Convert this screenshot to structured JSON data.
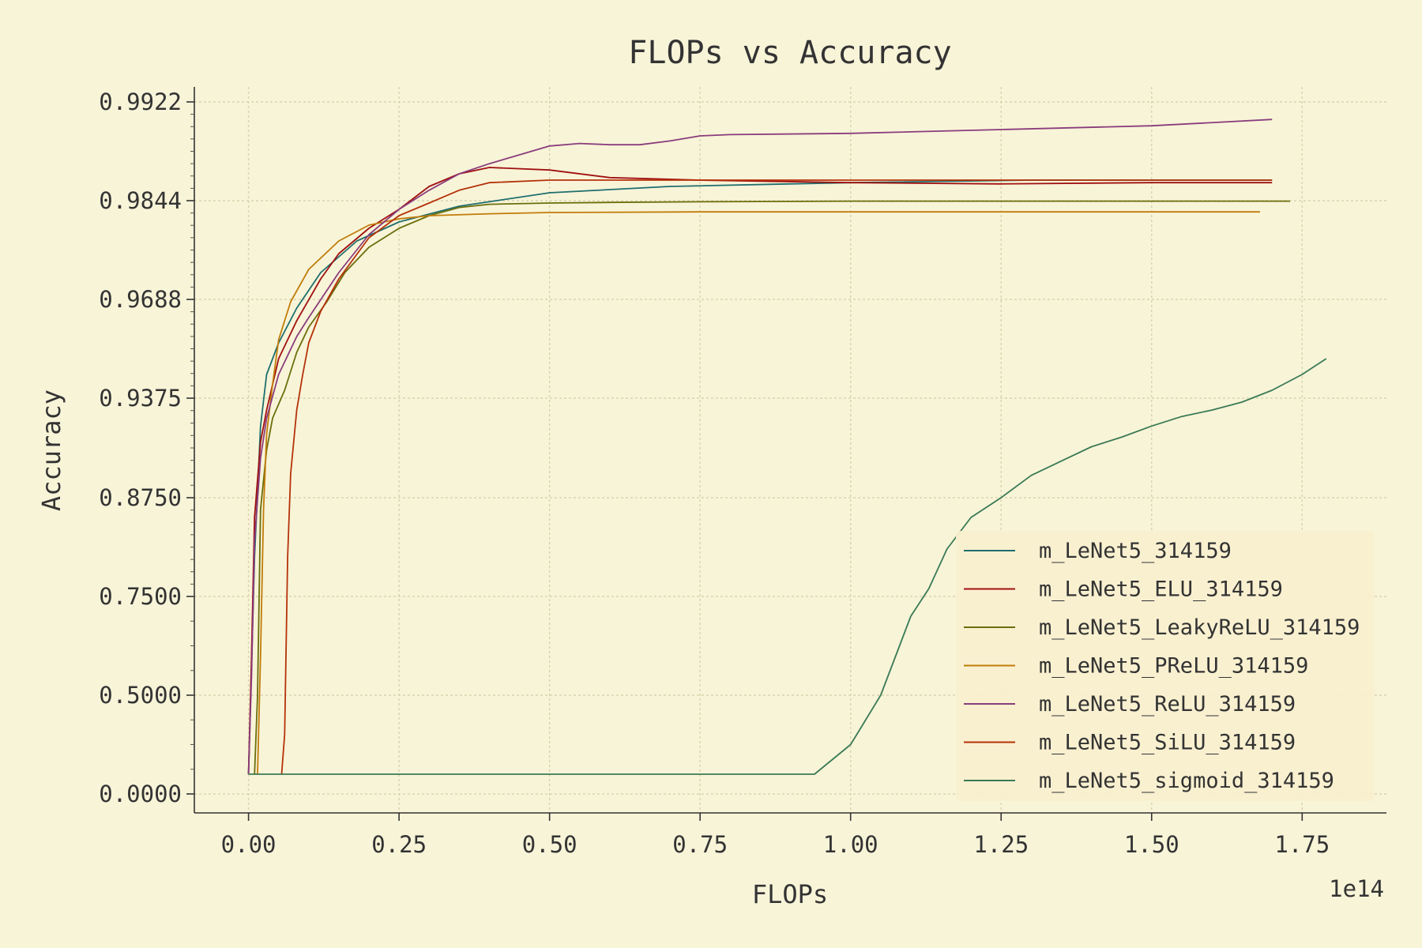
{
  "chart_data": {
    "type": "line",
    "title": "FLOPs vs Accuracy",
    "xlabel": "FLOPs",
    "ylabel": "Accuracy",
    "x_multiplier_label": "1e14",
    "x_unit": 100000000000000.0,
    "xlim": [
      -0.09,
      1.89
    ],
    "x_ticks": [
      0.0,
      0.25,
      0.5,
      0.75,
      1.0,
      1.25,
      1.5,
      1.75
    ],
    "x_tick_labels": [
      "0.00",
      "0.25",
      "0.50",
      "0.75",
      "1.00",
      "1.25",
      "1.50",
      "1.75"
    ],
    "y_ticks": [
      0.0,
      0.5,
      0.75,
      0.875,
      0.9375,
      0.96875,
      0.984375,
      0.9921875
    ],
    "y_tick_labels": [
      "0.0000",
      "0.5000",
      "0.7500",
      "0.8750",
      "0.9375",
      "0.9688",
      "0.9844",
      "0.9922"
    ],
    "y_scale": "logit-like (1 - accuracy halves per tick)",
    "grid": true,
    "legend_position": "lower right",
    "series": [
      {
        "name": "m_LeNet5_314159",
        "color": "#1f6e6e",
        "x": [
          0.0,
          0.01,
          0.02,
          0.03,
          0.05,
          0.08,
          0.12,
          0.18,
          0.25,
          0.35,
          0.5,
          0.7,
          1.0,
          1.3,
          1.5,
          1.7
        ],
        "y": [
          0.1,
          0.8,
          0.92,
          0.945,
          0.955,
          0.966,
          0.973,
          0.978,
          0.981,
          0.9835,
          0.985,
          0.9855,
          0.9858,
          0.986,
          0.986,
          0.986
        ],
        "hidden_under_other_series": true
      },
      {
        "name": "m_LeNet5_ELU_314159",
        "color": "#a01010",
        "x": [
          0.0,
          0.005,
          0.01,
          0.02,
          0.03,
          0.05,
          0.08,
          0.12,
          0.15,
          0.2,
          0.25,
          0.3,
          0.35,
          0.4,
          0.5,
          0.6,
          0.75,
          1.0,
          1.25,
          1.5,
          1.7
        ],
        "y": [
          0.1,
          0.6,
          0.85,
          0.91,
          0.93,
          0.95,
          0.962,
          0.972,
          0.976,
          0.98,
          0.983,
          0.9855,
          0.9865,
          0.987,
          0.9868,
          0.9862,
          0.986,
          0.9858,
          0.9857,
          0.9858,
          0.9858
        ]
      },
      {
        "name": "m_LeNet5_LeakyReLU_314159",
        "color": "#6b6e0c",
        "x": [
          0.01,
          0.015,
          0.02,
          0.03,
          0.04,
          0.06,
          0.08,
          0.1,
          0.13,
          0.16,
          0.2,
          0.25,
          0.3,
          0.35,
          0.4,
          0.5,
          0.6,
          0.75,
          1.0,
          1.25,
          1.5,
          1.73
        ],
        "y": [
          0.1,
          0.5,
          0.86,
          0.905,
          0.925,
          0.94,
          0.952,
          0.96,
          0.968,
          0.973,
          0.977,
          0.98,
          0.982,
          0.9833,
          0.9838,
          0.984,
          0.9841,
          0.9842,
          0.9843,
          0.9843,
          0.9843,
          0.9843
        ]
      },
      {
        "name": "m_LeNet5_PReLU_314159",
        "color": "#c17c0a",
        "x": [
          0.015,
          0.02,
          0.025,
          0.03,
          0.04,
          0.05,
          0.07,
          0.1,
          0.15,
          0.2,
          0.25,
          0.3,
          0.4,
          0.5,
          0.75,
          1.0,
          1.25,
          1.5,
          1.68
        ],
        "y": [
          0.1,
          0.6,
          0.86,
          0.915,
          0.942,
          0.956,
          0.968,
          0.9735,
          0.978,
          0.9805,
          0.9815,
          0.982,
          0.9823,
          0.9825,
          0.9826,
          0.9826,
          0.9826,
          0.9826,
          0.9826
        ]
      },
      {
        "name": "m_LeNet5_ReLU_314159",
        "color": "#8a3d7c",
        "x": [
          0.0,
          0.005,
          0.01,
          0.02,
          0.03,
          0.05,
          0.08,
          0.1,
          0.15,
          0.2,
          0.25,
          0.3,
          0.35,
          0.4,
          0.45,
          0.5,
          0.55,
          0.6,
          0.65,
          0.7,
          0.75,
          0.8,
          1.0,
          1.25,
          1.5,
          1.7
        ],
        "y": [
          0.1,
          0.55,
          0.82,
          0.9,
          0.925,
          0.945,
          0.957,
          0.963,
          0.973,
          0.979,
          0.983,
          0.9852,
          0.9865,
          0.9873,
          0.988,
          0.9887,
          0.9889,
          0.9888,
          0.9888,
          0.9891,
          0.9895,
          0.9896,
          0.9897,
          0.99,
          0.9903,
          0.9908
        ]
      },
      {
        "name": "m_LeNet5_SiLU_314159",
        "color": "#b5320a",
        "x": [
          0.055,
          0.06,
          0.065,
          0.07,
          0.08,
          0.09,
          0.1,
          0.12,
          0.15,
          0.2,
          0.25,
          0.3,
          0.35,
          0.4,
          0.5,
          0.75,
          1.0,
          1.25,
          1.5,
          1.7
        ],
        "y": [
          0.1,
          0.3,
          0.8,
          0.89,
          0.93,
          0.945,
          0.955,
          0.965,
          0.972,
          0.9785,
          0.982,
          0.984,
          0.9852,
          0.9858,
          0.986,
          0.986,
          0.986,
          0.986,
          0.986,
          0.986
        ]
      },
      {
        "name": "m_LeNet5_sigmoid_314159",
        "color": "#3a7a55",
        "x": [
          0.0,
          0.94,
          0.96,
          0.98,
          1.0,
          1.02,
          1.05,
          1.08,
          1.1,
          1.13,
          1.16,
          1.2,
          1.25,
          1.3,
          1.35,
          1.4,
          1.45,
          1.5,
          1.55,
          1.6,
          1.65,
          1.7,
          1.75,
          1.79
        ],
        "y": [
          0.1,
          0.1,
          0.15,
          0.2,
          0.25,
          0.35,
          0.5,
          0.62,
          0.7,
          0.76,
          0.81,
          0.85,
          0.875,
          0.889,
          0.898,
          0.907,
          0.913,
          0.92,
          0.926,
          0.93,
          0.935,
          0.94,
          0.945,
          0.95
        ]
      }
    ]
  }
}
